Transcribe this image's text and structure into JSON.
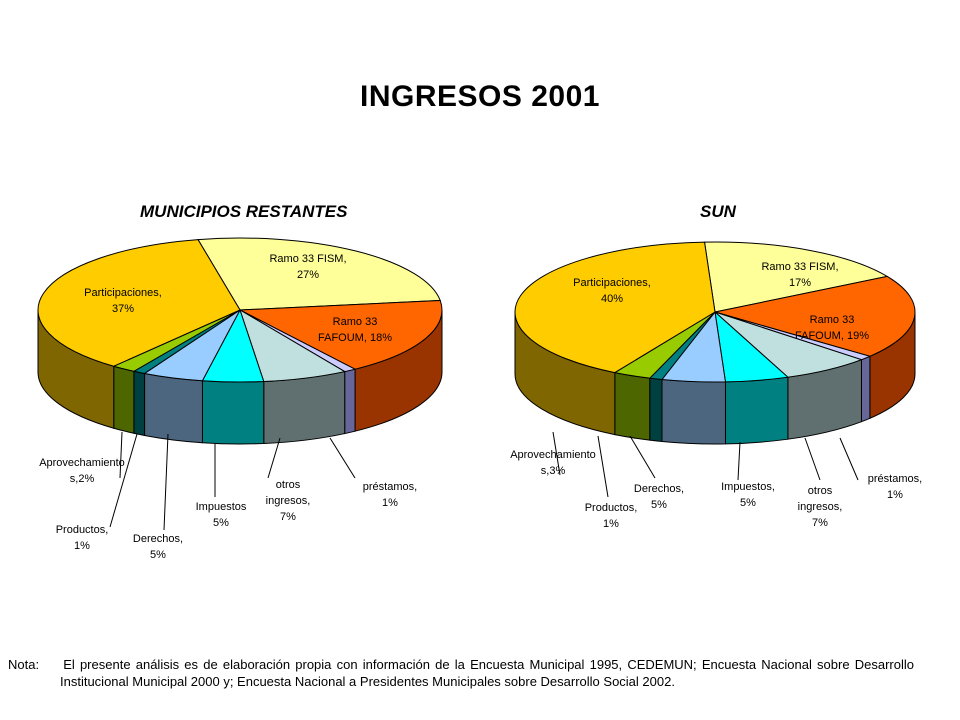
{
  "title": "INGRESOS 2001",
  "note": {
    "prefix": "Nota:",
    "text": "El presente análisis es de elaboración propia con información de la Encuesta Municipal 1995, CEDEMUN; Encuesta Nacional sobre Desarrollo Institucional Municipal 2000 y; Encuesta Nacional a Presidentes Municipales sobre Desarrollo Social 2002."
  },
  "chart_data": [
    {
      "type": "pie",
      "title": "MUNICIPIOS RESTANTES",
      "slices": [
        {
          "label": [
            "Ramo 33 FISM,",
            "27%"
          ],
          "value": 27,
          "color": "#FFFF99",
          "side": "#B3B36B"
        },
        {
          "label": [
            "Ramo 33",
            "FAFOUM, 18%"
          ],
          "value": 18,
          "color": "#FF6600",
          "side": "#993300"
        },
        {
          "label": [
            "préstamos,",
            "1%"
          ],
          "value": 1,
          "color": "#CCCCFF",
          "side": "#666699"
        },
        {
          "label": [
            "otros",
            "ingresos,",
            "7%"
          ],
          "value": 7,
          "color": "#C0E0E0",
          "side": "#607070"
        },
        {
          "label": [
            "Impuestos",
            "5%"
          ],
          "value": 5,
          "color": "#00FFFF",
          "side": "#008080"
        },
        {
          "label": [
            "Derechos,",
            "5%"
          ],
          "value": 5,
          "color": "#99CCFF",
          "side": "#4C6680"
        },
        {
          "label": [
            "Productos,",
            "1%"
          ],
          "value": 1,
          "color": "#008080",
          "side": "#004040"
        },
        {
          "label": [
            "Aprovechamiento",
            "s,2%"
          ],
          "value": 2,
          "color": "#99CC00",
          "side": "#4D6600"
        },
        {
          "label": [
            "Participaciones,",
            "37%"
          ],
          "value": 37,
          "color": "#FFCC00",
          "side": "#806600"
        }
      ]
    },
    {
      "type": "pie",
      "title": "SUN",
      "slices": [
        {
          "label": [
            "Ramo 33 FISM,",
            "17%"
          ],
          "value": 17,
          "color": "#FFFF99",
          "side": "#B3B36B"
        },
        {
          "label": [
            "Ramo 33",
            "FAFOUM, 19%"
          ],
          "value": 19,
          "color": "#FF6600",
          "side": "#993300"
        },
        {
          "label": [
            "préstamos,",
            "1%"
          ],
          "value": 1,
          "color": "#CCCCFF",
          "side": "#666699"
        },
        {
          "label": [
            "otros",
            "ingresos,",
            "7%"
          ],
          "value": 7,
          "color": "#C0E0E0",
          "side": "#607070"
        },
        {
          "label": [
            "Impuestos,",
            "5%"
          ],
          "value": 5,
          "color": "#00FFFF",
          "side": "#008080"
        },
        {
          "label": [
            "Derechos,",
            "5%"
          ],
          "value": 5,
          "color": "#99CCFF",
          "side": "#4C6680"
        },
        {
          "label": [
            "Productos,",
            "1%"
          ],
          "value": 1,
          "color": "#008080",
          "side": "#004040"
        },
        {
          "label": [
            "Aprovechamiento",
            "s,3%"
          ],
          "value": 3,
          "color": "#99CC00",
          "side": "#4D6600"
        },
        {
          "label": [
            "Participaciones,",
            "40%"
          ],
          "value": 40,
          "color": "#FFCC00",
          "side": "#806600"
        }
      ]
    }
  ]
}
